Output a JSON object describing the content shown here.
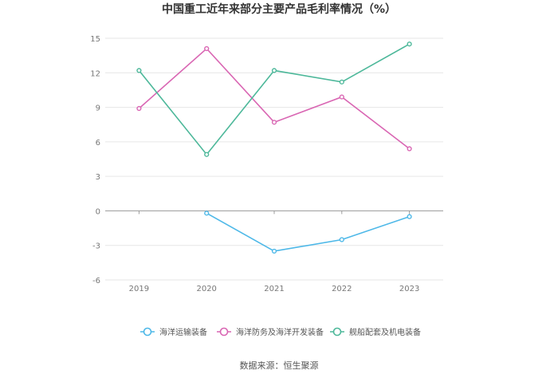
{
  "chart_data": {
    "type": "line",
    "title": "中国重工近年来部分主要产品毛利率情况（%）",
    "x": [
      "2019",
      "2020",
      "2021",
      "2022",
      "2023"
    ],
    "ylim": [
      -6,
      15
    ],
    "yticks": [
      "15",
      "12",
      "9",
      "6",
      "3",
      "0",
      "-3",
      "-6"
    ],
    "xlabel": "",
    "ylabel": "",
    "grid": true,
    "legend_position": "bottom",
    "series": [
      {
        "name": "海洋运输装备",
        "color": "#4db8e8",
        "values": [
          null,
          -0.2,
          -3.5,
          -2.5,
          -0.5
        ]
      },
      {
        "name": "海洋防务及海洋开发装备",
        "color": "#d966b3",
        "values": [
          8.9,
          14.1,
          7.7,
          9.9,
          5.4
        ]
      },
      {
        "name": "舰船配套及机电装备",
        "color": "#4db89a",
        "values": [
          12.2,
          4.9,
          12.2,
          11.2,
          14.5
        ]
      }
    ],
    "source": "数据来源：恒生聚源"
  }
}
